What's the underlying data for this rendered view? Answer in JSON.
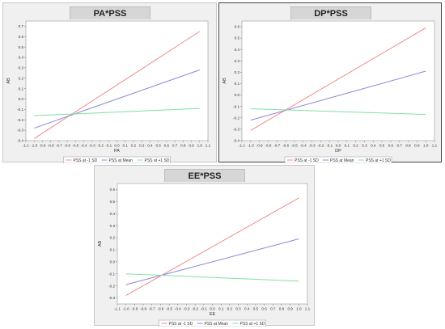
{
  "colors": {
    "low": "#f08a8a",
    "mean": "#8c86d8",
    "high": "#7fe0a0",
    "plot_bg": "#ffffff",
    "panel_bg": "#f0f0f0"
  },
  "chart_data": [
    {
      "type": "line",
      "title": "PA*PSS",
      "xlabel": "PA",
      "ylabel": "AB",
      "xlim": [
        -1.1,
        1.1
      ],
      "ylim": [
        -0.4,
        0.75
      ],
      "x_ticks": [
        "-1.1",
        "-1.0",
        "-0.9",
        "-0.8",
        "-0.7",
        "-0.6",
        "-0.5",
        "-0.4",
        "-0.3",
        "-0.2",
        "-0.1",
        "0.0",
        "0.1",
        "0.2",
        "0.3",
        "0.4",
        "0.5",
        "0.6",
        "0.7",
        "0.8",
        "0.9",
        "1.0",
        "1.1"
      ],
      "y_ticks": [
        "-0.4",
        "-0.3",
        "-0.2",
        "-0.1",
        "0.0",
        "0.1",
        "0.2",
        "0.3",
        "0.4",
        "0.5",
        "0.6",
        "0.7"
      ],
      "legend_position": "bottom",
      "series": [
        {
          "name": "PSS at -1 SD",
          "x": [
            -1.0,
            1.0
          ],
          "y": [
            -0.38,
            0.65
          ]
        },
        {
          "name": "PSS at Mean",
          "x": [
            -1.0,
            1.0
          ],
          "y": [
            -0.28,
            0.28
          ]
        },
        {
          "name": "PSS at +1 SD",
          "x": [
            -1.0,
            1.0
          ],
          "y": [
            -0.16,
            -0.09
          ]
        }
      ]
    },
    {
      "type": "line",
      "title": "DP*PSS",
      "xlabel": "DP",
      "ylabel": "AB",
      "xlim": [
        -1.1,
        1.1
      ],
      "ylim": [
        -0.4,
        0.65
      ],
      "x_ticks": [
        "-1.1",
        "-1.0",
        "-0.9",
        "-0.8",
        "-0.7",
        "-0.6",
        "-0.5",
        "-0.4",
        "-0.3",
        "-0.2",
        "-0.1",
        "0.0",
        "0.1",
        "0.2",
        "0.3",
        "0.4",
        "0.5",
        "0.6",
        "0.7",
        "0.8",
        "0.9",
        "1.0",
        "1.1"
      ],
      "y_ticks": [
        "-0.4",
        "-0.3",
        "-0.2",
        "-0.1",
        "0.0",
        "0.1",
        "0.2",
        "0.3",
        "0.4",
        "0.5",
        "0.6"
      ],
      "legend_position": "bottom",
      "series": [
        {
          "name": "PSS at -1 SD",
          "x": [
            -1.0,
            1.0
          ],
          "y": [
            -0.31,
            0.59
          ]
        },
        {
          "name": "PSS at Mean",
          "x": [
            -1.0,
            1.0
          ],
          "y": [
            -0.22,
            0.21
          ]
        },
        {
          "name": "PSS at +1 SD",
          "x": [
            -1.0,
            1.0
          ],
          "y": [
            -0.12,
            -0.17
          ]
        }
      ]
    },
    {
      "type": "line",
      "title": "EE*PSS",
      "xlabel": "EE",
      "ylabel": "AB",
      "xlim": [
        -1.1,
        1.1
      ],
      "ylim": [
        -0.35,
        0.65
      ],
      "x_ticks": [
        "-1.1",
        "-1.0",
        "-0.9",
        "-0.8",
        "-0.7",
        "-0.6",
        "-0.5",
        "-0.4",
        "-0.3",
        "-0.2",
        "-0.1",
        "0.0",
        "0.1",
        "0.2",
        "0.3",
        "0.4",
        "0.5",
        "0.6",
        "0.7",
        "0.8",
        "0.9",
        "1.0",
        "1.1"
      ],
      "y_ticks": [
        "-0.3",
        "-0.2",
        "-0.1",
        "0.0",
        "0.1",
        "0.2",
        "0.3",
        "0.4",
        "0.5",
        "0.6"
      ],
      "legend_position": "bottom",
      "series": [
        {
          "name": "PSS at -1 SD",
          "x": [
            -1.0,
            1.0
          ],
          "y": [
            -0.28,
            0.53
          ]
        },
        {
          "name": "PSS at Mean",
          "x": [
            -1.0,
            1.0
          ],
          "y": [
            -0.19,
            0.19
          ]
        },
        {
          "name": "PSS at +1 SD",
          "x": [
            -1.0,
            1.0
          ],
          "y": [
            -0.1,
            -0.16
          ]
        }
      ]
    }
  ]
}
